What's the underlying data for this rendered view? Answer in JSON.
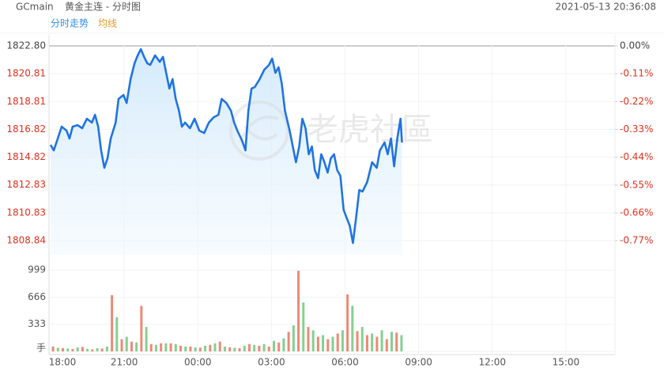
{
  "header": {
    "symbol": "GCmain",
    "name": "黄金主连 - 分时图",
    "timestamp": "2021-05-13 20:36:08"
  },
  "tabs": [
    {
      "label": "分时走势",
      "color": "#2e8ae6"
    },
    {
      "label": "均线",
      "color": "#e89a2b"
    }
  ],
  "watermark": "老虎社區",
  "tick_colors": {
    "neutral": "#444444",
    "down": "#e0301e"
  },
  "chart_data": [
    {
      "type": "line",
      "xlim": [
        0,
        23
      ],
      "xticks": [
        {
          "value": 0,
          "label": "18:00"
        },
        {
          "value": 3,
          "label": "21:00"
        },
        {
          "value": 6,
          "label": "00:00"
        },
        {
          "value": 9,
          "label": "03:00"
        },
        {
          "value": 12,
          "label": "06:00"
        },
        {
          "value": 15,
          "label": "09:00"
        },
        {
          "value": 18,
          "label": "12:00"
        },
        {
          "value": 21,
          "label": "15:00"
        }
      ],
      "ylim": [
        1807.82,
        1822.8
      ],
      "yticks": [
        {
          "value": 1822.8,
          "label": "1822.80"
        },
        1820.81,
        1818.81,
        1816.82,
        1814.82,
        1812.83,
        1810.83,
        1808.84
      ],
      "y2lim": [
        -0.826,
        0
      ],
      "y2ticks": [
        {
          "value": 0,
          "label": "0.00%"
        },
        {
          "value": -0.11,
          "label": "-0.11%"
        },
        {
          "value": -0.22,
          "label": "-0.22%"
        },
        {
          "value": -0.33,
          "label": "-0.33%"
        },
        {
          "value": -0.44,
          "label": "-0.44%"
        },
        {
          "value": -0.55,
          "label": "-0.55%"
        },
        {
          "value": -0.66,
          "label": "-0.66%"
        },
        {
          "value": -0.77,
          "label": "-0.77%"
        }
      ],
      "grid": true,
      "series": [
        {
          "color": "#1f74e0",
          "x": [
            0.0,
            0.13,
            0.26,
            0.45,
            0.65,
            0.77,
            0.9,
            1.1,
            1.29,
            1.48,
            1.68,
            1.81,
            1.94,
            2.06,
            2.19,
            2.32,
            2.45,
            2.65,
            2.77,
            2.97,
            3.1,
            3.26,
            3.42,
            3.55,
            3.68,
            3.81,
            3.94,
            4.06,
            4.26,
            4.45,
            4.58,
            4.71,
            4.84,
            4.97,
            5.1,
            5.23,
            5.35,
            5.48,
            5.68,
            5.87,
            6.06,
            6.26,
            6.45,
            6.65,
            6.84,
            6.97,
            7.16,
            7.35,
            7.48,
            7.61,
            7.81,
            7.94,
            8.06,
            8.19,
            8.32,
            8.52,
            8.71,
            8.9,
            9.03,
            9.16,
            9.29,
            9.42,
            9.55,
            9.74,
            9.87,
            10.0,
            10.13,
            10.26,
            10.39,
            10.52,
            10.65,
            10.77,
            10.9,
            11.03,
            11.16,
            11.29,
            11.42,
            11.55,
            11.68,
            11.81,
            11.94,
            12.06,
            12.19,
            12.32,
            12.45,
            12.58,
            12.71,
            12.9,
            13.1,
            13.29,
            13.42,
            13.61,
            13.74,
            13.87,
            14.0,
            14.13,
            14.26,
            14.32
          ],
          "values": [
            1815.71,
            1815.31,
            1815.99,
            1817.01,
            1816.73,
            1816.16,
            1817.01,
            1817.12,
            1816.9,
            1817.58,
            1817.3,
            1817.86,
            1817.01,
            1815.31,
            1814.06,
            1814.74,
            1816.16,
            1817.3,
            1819.0,
            1819.28,
            1818.71,
            1820.42,
            1821.55,
            1822.12,
            1822.57,
            1822.01,
            1821.55,
            1821.44,
            1822.12,
            1821.66,
            1822.01,
            1820.87,
            1819.74,
            1820.42,
            1819.0,
            1818.15,
            1817.01,
            1817.3,
            1816.9,
            1817.58,
            1816.73,
            1816.56,
            1817.3,
            1817.69,
            1817.86,
            1819.0,
            1818.71,
            1818.15,
            1817.3,
            1816.73,
            1815.99,
            1815.31,
            1818.15,
            1819.74,
            1819.85,
            1820.42,
            1821.1,
            1821.44,
            1821.89,
            1820.87,
            1821.27,
            1820.13,
            1818.15,
            1816.73,
            1815.59,
            1814.46,
            1815.59,
            1817.58,
            1816.9,
            1815.03,
            1815.59,
            1813.89,
            1813.32,
            1815.03,
            1814.46,
            1813.72,
            1814.74,
            1815.03,
            1813.89,
            1813.49,
            1811.05,
            1810.49,
            1809.92,
            1808.67,
            1810.49,
            1812.47,
            1812.36,
            1813.04,
            1814.46,
            1814.06,
            1815.31,
            1815.88,
            1815.03,
            1816.16,
            1814.17,
            1816.16,
            1817.58,
            1815.88
          ]
        }
      ]
    },
    {
      "type": "bar",
      "xlim": [
        0,
        23
      ],
      "ylim": [
        0,
        1030
      ],
      "yticks": [
        999,
        666,
        333,
        {
          "value": 0,
          "label": "手"
        }
      ],
      "series": [
        {
          "color": "#ec8a76",
          "x": [
            0.1,
            0.5,
            0.9,
            1.3,
            1.7,
            2.1,
            2.5,
            2.9,
            3.3,
            3.7,
            4.1,
            4.5,
            4.9,
            5.3,
            5.7,
            6.1,
            6.5,
            6.9,
            7.3,
            7.7,
            8.1,
            8.5,
            8.9,
            9.3,
            9.7,
            10.1,
            10.5,
            10.9,
            11.3,
            11.7,
            12.1,
            12.5,
            12.9,
            13.3,
            13.7,
            14.1
          ],
          "values": [
            60,
            40,
            30,
            55,
            25,
            35,
            690,
            150,
            120,
            560,
            90,
            100,
            100,
            70,
            60,
            45,
            80,
            120,
            50,
            40,
            90,
            70,
            60,
            110,
            240,
            990,
            300,
            180,
            150,
            220,
            700,
            250,
            200,
            180,
            150,
            230
          ]
        },
        {
          "color": "#86cf92",
          "x": [
            0.3,
            0.7,
            1.1,
            1.5,
            1.9,
            2.3,
            2.7,
            3.1,
            3.5,
            3.9,
            4.3,
            4.7,
            5.1,
            5.5,
            5.9,
            6.3,
            6.7,
            7.1,
            7.5,
            7.9,
            8.3,
            8.7,
            9.1,
            9.5,
            9.9,
            10.3,
            10.7,
            11.1,
            11.5,
            11.9,
            12.3,
            12.7,
            13.1,
            13.5,
            13.9,
            14.3
          ],
          "values": [
            45,
            35,
            50,
            30,
            40,
            60,
            420,
            180,
            110,
            300,
            80,
            100,
            90,
            60,
            50,
            70,
            100,
            60,
            45,
            70,
            80,
            90,
            130,
            160,
            320,
            600,
            260,
            200,
            180,
            260,
            560,
            300,
            220,
            260,
            240,
            200
          ]
        }
      ]
    }
  ]
}
